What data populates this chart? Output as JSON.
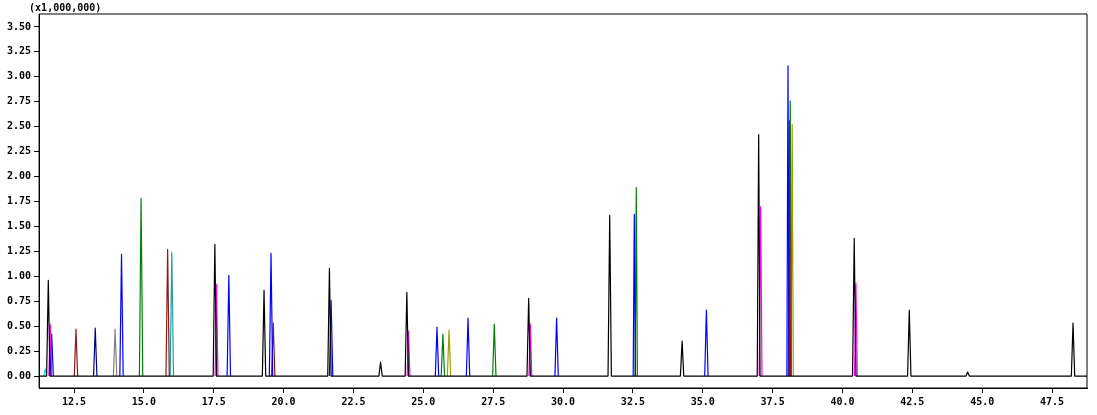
{
  "chart_data": {
    "type": "line",
    "ylabel": "(x1,000,000)",
    "xlim": [
      11.25,
      48.75
    ],
    "ylim": [
      -0.12,
      3.63
    ],
    "xticks": [
      {
        "value": 12.5,
        "label": "12.5"
      },
      {
        "value": 15,
        "label": "15.0"
      },
      {
        "value": 17.5,
        "label": "17.5"
      },
      {
        "value": 20,
        "label": "20.0"
      },
      {
        "value": 22.5,
        "label": "22.5"
      },
      {
        "value": 25,
        "label": "25.0"
      },
      {
        "value": 27.5,
        "label": "27.5"
      },
      {
        "value": 30,
        "label": "30.0"
      },
      {
        "value": 32.5,
        "label": "32.5"
      },
      {
        "value": 35,
        "label": "35.0"
      },
      {
        "value": 37.5,
        "label": "37.5"
      },
      {
        "value": 40,
        "label": "40.0"
      },
      {
        "value": 42.5,
        "label": "42.5"
      },
      {
        "value": 45,
        "label": "45.0"
      },
      {
        "value": 47.5,
        "label": "47.5"
      }
    ],
    "yticks": [
      {
        "value": 0,
        "label": "0.00"
      },
      {
        "value": 0.25,
        "label": "0.25"
      },
      {
        "value": 0.5,
        "label": "0.50"
      },
      {
        "value": 0.75,
        "label": "0.75"
      },
      {
        "value": 1,
        "label": "1.00"
      },
      {
        "value": 1.25,
        "label": "1.25"
      },
      {
        "value": 1.5,
        "label": "1.50"
      },
      {
        "value": 1.75,
        "label": "1.75"
      },
      {
        "value": 2,
        "label": "2.00"
      },
      {
        "value": 2.25,
        "label": "2.25"
      },
      {
        "value": 2.5,
        "label": "2.50"
      },
      {
        "value": 2.75,
        "label": "2.75"
      },
      {
        "value": 3,
        "label": "3.00"
      },
      {
        "value": 3.25,
        "label": "3.25"
      },
      {
        "value": 3.5,
        "label": "3.50"
      }
    ],
    "grid": false,
    "legend": false,
    "marker": "none",
    "line_style": "solid",
    "series": [
      {
        "color": "#00e0e0",
        "x": [
          11.42,
          11.47,
          11.52
        ],
        "values": [
          0,
          0.07,
          0
        ]
      },
      {
        "color": "#a0a000",
        "x": [
          25.86,
          25.92,
          25.98,
          30,
          38.16,
          38.2,
          38.24
        ],
        "values": [
          0,
          0.46,
          0,
          null,
          0,
          2.52,
          0
        ]
      },
      {
        "color": "#20a0a0",
        "x": [
          15.94,
          16.0,
          16.06
        ],
        "values": [
          0,
          1.24,
          0
        ]
      },
      {
        "color": "#808080",
        "x": [
          13.91,
          13.97,
          14.03
        ],
        "values": [
          0,
          0.47,
          0
        ]
      },
      {
        "color": "#000080",
        "x": [
          13.2,
          13.26,
          13.32
        ],
        "values": [
          0,
          0.48,
          0
        ]
      },
      {
        "color": "#008000",
        "x": [
          14.84,
          14.9,
          14.96,
          20,
          25.64,
          25.7,
          25.76,
          26.5,
          27.48,
          27.54,
          27.6,
          30,
          32.58,
          32.62,
          32.66,
          35,
          38.09,
          38.13,
          38.17
        ],
        "values": [
          0,
          1.78,
          0,
          null,
          0,
          0.42,
          0,
          null,
          0,
          0.52,
          0,
          null,
          0,
          1.89,
          0,
          null,
          0,
          2.76,
          0
        ]
      },
      {
        "color": "#8b1a1a",
        "x": [
          12.51,
          12.57,
          12.63,
          14,
          15.79,
          15.85,
          15.91,
          18,
          19.57,
          19.63,
          19.69,
          30,
          38.06,
          38.1,
          38.14
        ],
        "values": [
          0,
          0.47,
          0,
          null,
          0,
          1.27,
          0,
          null,
          0,
          0.53,
          0,
          null,
          0,
          2.56,
          0
        ]
      },
      {
        "color": "#0000ff",
        "x": [
          11.64,
          11.7,
          11.76,
          13,
          14.14,
          14.2,
          14.26,
          16,
          17.98,
          18.04,
          18.1,
          19,
          19.49,
          19.55,
          19.61,
          20,
          21.64,
          21.7,
          21.76,
          23,
          25.43,
          25.49,
          25.55,
          26,
          26.54,
          26.6,
          26.66,
          28,
          29.71,
          29.77,
          29.83,
          31,
          32.51,
          32.55,
          32.59,
          34,
          35.07,
          35.13,
          35.19,
          37,
          38.01,
          38.05,
          38.09
        ],
        "values": [
          0,
          0.42,
          0,
          null,
          0,
          1.22,
          0,
          null,
          0,
          1.01,
          0,
          null,
          0,
          1.23,
          0,
          null,
          0,
          0.76,
          0,
          null,
          0,
          0.49,
          0,
          null,
          0,
          0.58,
          0,
          null,
          0,
          0.58,
          0,
          null,
          0,
          1.62,
          0,
          null,
          0,
          0.66,
          0,
          null,
          0,
          3.11,
          0
        ]
      },
      {
        "color": "#ff00ff",
        "x": [
          11.6,
          11.65,
          11.7,
          14,
          17.55,
          17.6,
          17.65,
          20,
          24.42,
          24.47,
          24.52,
          26,
          28.78,
          28.83,
          28.88,
          33,
          37.02,
          37.07,
          37.12,
          39,
          40.43,
          40.48,
          40.53
        ],
        "values": [
          0,
          0.52,
          0,
          null,
          0,
          0.92,
          0,
          null,
          0,
          0.45,
          0,
          null,
          0,
          0.52,
          0,
          null,
          0,
          1.7,
          0,
          null,
          0,
          0.93,
          0
        ]
      },
      {
        "color": "#000000",
        "x": [
          11.25,
          11.52,
          11.58,
          11.64,
          17.48,
          17.54,
          17.6,
          19.24,
          19.3,
          19.36,
          21.58,
          21.64,
          21.7,
          23.41,
          23.47,
          23.53,
          24.35,
          24.41,
          24.47,
          28.71,
          28.77,
          28.83,
          31.61,
          31.67,
          31.73,
          34.2,
          34.26,
          34.32,
          36.95,
          37.0,
          37.05,
          40.36,
          40.42,
          40.48,
          42.33,
          42.39,
          42.45,
          44.42,
          44.48,
          44.54,
          48.19,
          48.25,
          48.31,
          48.75
        ],
        "values": [
          0,
          0,
          0.96,
          0,
          0,
          1.32,
          0,
          0,
          0.86,
          0,
          0,
          1.08,
          0,
          0,
          0.14,
          0,
          0,
          0.84,
          0,
          0,
          0.78,
          0,
          0,
          1.61,
          0,
          0,
          0.35,
          0,
          0,
          2.42,
          0,
          0,
          1.38,
          0,
          0,
          0.66,
          0,
          0,
          0.04,
          0,
          0,
          0.53,
          0,
          0
        ]
      }
    ]
  }
}
